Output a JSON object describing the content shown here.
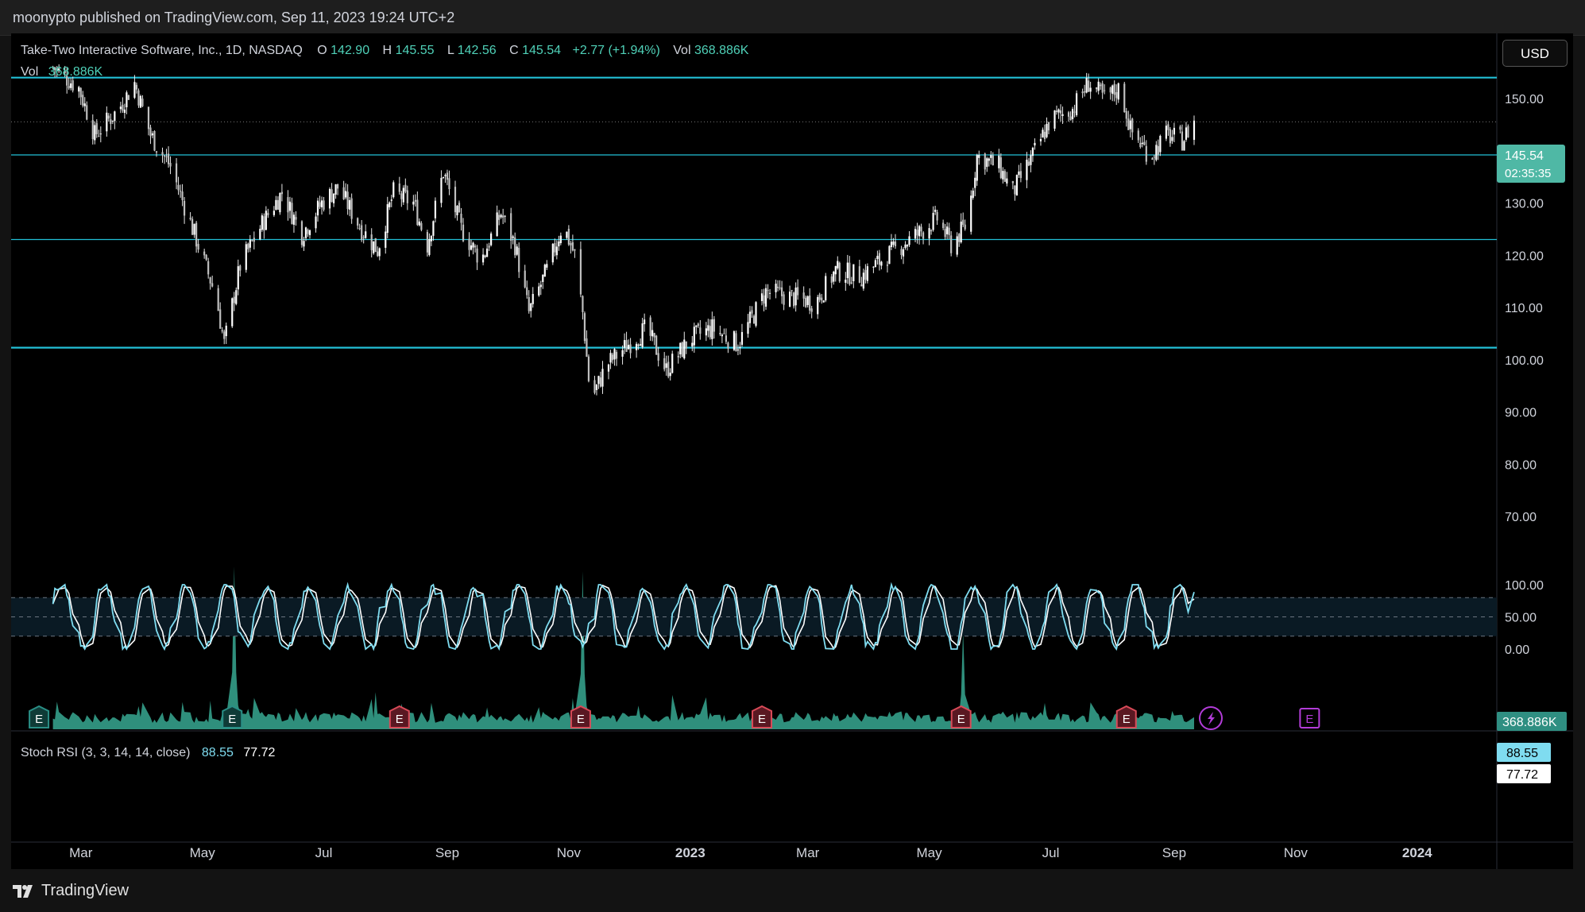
{
  "header": {
    "published": "moonypto published on TradingView.com, Sep 11, 2023 19:24 UTC+2"
  },
  "legend": {
    "symbol": "Take-Two Interactive Software, Inc., 1D, NASDAQ",
    "o_label": "O",
    "o_value": "142.90",
    "h_label": "H",
    "h_value": "145.55",
    "l_label": "L",
    "l_value": "142.56",
    "c_label": "C",
    "c_value": "145.54",
    "change": "+2.77 (+1.94%)",
    "vol_label": "Vol",
    "vol_value": "368.886K",
    "vol_row_label": "Vol",
    "vol_row_value": "368.886K"
  },
  "currency_button": "USD",
  "price_badge": {
    "price": "145.54",
    "countdown": "02:35:35"
  },
  "volume_badge": "368.886K",
  "stoch": {
    "title": "Stoch RSI (3, 3, 14, 14, close)",
    "k_value": "88.55",
    "d_value": "77.72",
    "k_badge": "88.55",
    "d_badge": "77.72"
  },
  "footer": {
    "brand": "TradingView"
  },
  "colors": {
    "up": "#4fd1b8",
    "level_line": "#22c0d6",
    "stoch_k": "#7fdcf0",
    "stoch_d": "#ffffff",
    "earnings_red": "#d94a58",
    "earnings_teal": "#2a8f86",
    "earnings_purple": "#b23cd8"
  },
  "chart_data": {
    "type": "candlestick",
    "y_axis_ticks": [
      150,
      140,
      130,
      120,
      110,
      100,
      90,
      80,
      70
    ],
    "y_axis_tick_labels": [
      "150.00",
      "140.00",
      "130.00",
      "120.00",
      "110.00",
      "100.00",
      "90.00",
      "80.00",
      "70.00"
    ],
    "x_axis_labels": [
      "Mar",
      "May",
      "Jul",
      "Sep",
      "Nov",
      "2023",
      "Mar",
      "May",
      "Jul",
      "Sep",
      "Nov",
      "2024"
    ],
    "horizontal_levels": [
      154,
      139.2,
      123,
      102.3
    ],
    "last_price": 145.54,
    "close_path": [
      {
        "d": "2022-02-15",
        "v": 156
      },
      {
        "d": "2022-02-28",
        "v": 152
      },
      {
        "d": "2022-03-08",
        "v": 143
      },
      {
        "d": "2022-03-20",
        "v": 148
      },
      {
        "d": "2022-03-28",
        "v": 153
      },
      {
        "d": "2022-04-05",
        "v": 143
      },
      {
        "d": "2022-04-15",
        "v": 137
      },
      {
        "d": "2022-04-28",
        "v": 123
      },
      {
        "d": "2022-05-08",
        "v": 112
      },
      {
        "d": "2022-05-12",
        "v": 103
      },
      {
        "d": "2022-05-20",
        "v": 118
      },
      {
        "d": "2022-05-31",
        "v": 126
      },
      {
        "d": "2022-06-10",
        "v": 132
      },
      {
        "d": "2022-06-20",
        "v": 124
      },
      {
        "d": "2022-06-30",
        "v": 130
      },
      {
        "d": "2022-07-08",
        "v": 133
      },
      {
        "d": "2022-07-20",
        "v": 125
      },
      {
        "d": "2022-07-28",
        "v": 121
      },
      {
        "d": "2022-08-05",
        "v": 132
      },
      {
        "d": "2022-08-15",
        "v": 130
      },
      {
        "d": "2022-08-22",
        "v": 122
      },
      {
        "d": "2022-08-30",
        "v": 136
      },
      {
        "d": "2022-09-08",
        "v": 125
      },
      {
        "d": "2022-09-18",
        "v": 119
      },
      {
        "d": "2022-09-28",
        "v": 128
      },
      {
        "d": "2022-10-05",
        "v": 122
      },
      {
        "d": "2022-10-12",
        "v": 109
      },
      {
        "d": "2022-10-22",
        "v": 118
      },
      {
        "d": "2022-10-29",
        "v": 126
      },
      {
        "d": "2022-11-04",
        "v": 120
      },
      {
        "d": "2022-11-08",
        "v": 109
      },
      {
        "d": "2022-11-12",
        "v": 92
      },
      {
        "d": "2022-11-20",
        "v": 99
      },
      {
        "d": "2022-12-01",
        "v": 103
      },
      {
        "d": "2022-12-10",
        "v": 106
      },
      {
        "d": "2022-12-20",
        "v": 98
      },
      {
        "d": "2023-01-01",
        "v": 104
      },
      {
        "d": "2023-01-12",
        "v": 106
      },
      {
        "d": "2023-01-25",
        "v": 103
      },
      {
        "d": "2023-02-08",
        "v": 113
      },
      {
        "d": "2023-02-20",
        "v": 112
      },
      {
        "d": "2023-03-05",
        "v": 111
      },
      {
        "d": "2023-03-15",
        "v": 117
      },
      {
        "d": "2023-03-28",
        "v": 116
      },
      {
        "d": "2023-04-10",
        "v": 120
      },
      {
        "d": "2023-04-25",
        "v": 124
      },
      {
        "d": "2023-05-05",
        "v": 127
      },
      {
        "d": "2023-05-12",
        "v": 122
      },
      {
        "d": "2023-05-20",
        "v": 126
      },
      {
        "d": "2023-05-25",
        "v": 139
      },
      {
        "d": "2023-06-05",
        "v": 137
      },
      {
        "d": "2023-06-12",
        "v": 132
      },
      {
        "d": "2023-06-22",
        "v": 139
      },
      {
        "d": "2023-07-01",
        "v": 146
      },
      {
        "d": "2023-07-12",
        "v": 148
      },
      {
        "d": "2023-07-20",
        "v": 153
      },
      {
        "d": "2023-07-28",
        "v": 150
      },
      {
        "d": "2023-08-05",
        "v": 152
      },
      {
        "d": "2023-08-10",
        "v": 144
      },
      {
        "d": "2023-08-20",
        "v": 139
      },
      {
        "d": "2023-08-28",
        "v": 143
      },
      {
        "d": "2023-09-05",
        "v": 142
      },
      {
        "d": "2023-09-11",
        "v": 145.54
      }
    ],
    "volume_spikes": [
      {
        "d": "2022-05-17",
        "v": 1
      },
      {
        "d": "2022-11-08",
        "v": 0.97
      },
      {
        "d": "2023-05-18",
        "v": 0.61
      }
    ],
    "earnings_markers": [
      {
        "d": "2022-02-08",
        "kind": "teal"
      },
      {
        "d": "2022-05-16",
        "kind": "teal"
      },
      {
        "d": "2022-08-08",
        "kind": "red"
      },
      {
        "d": "2022-11-07",
        "kind": "red"
      },
      {
        "d": "2023-02-06",
        "kind": "red"
      },
      {
        "d": "2023-05-17",
        "kind": "red"
      },
      {
        "d": "2023-08-08",
        "kind": "red"
      },
      {
        "d": "2023-11-08",
        "kind": "purple"
      }
    ],
    "stoch_levels": [
      100,
      80,
      50,
      20,
      0
    ],
    "stoch_tick_labels": [
      "100.00",
      "50.00",
      "0.00"
    ]
  }
}
